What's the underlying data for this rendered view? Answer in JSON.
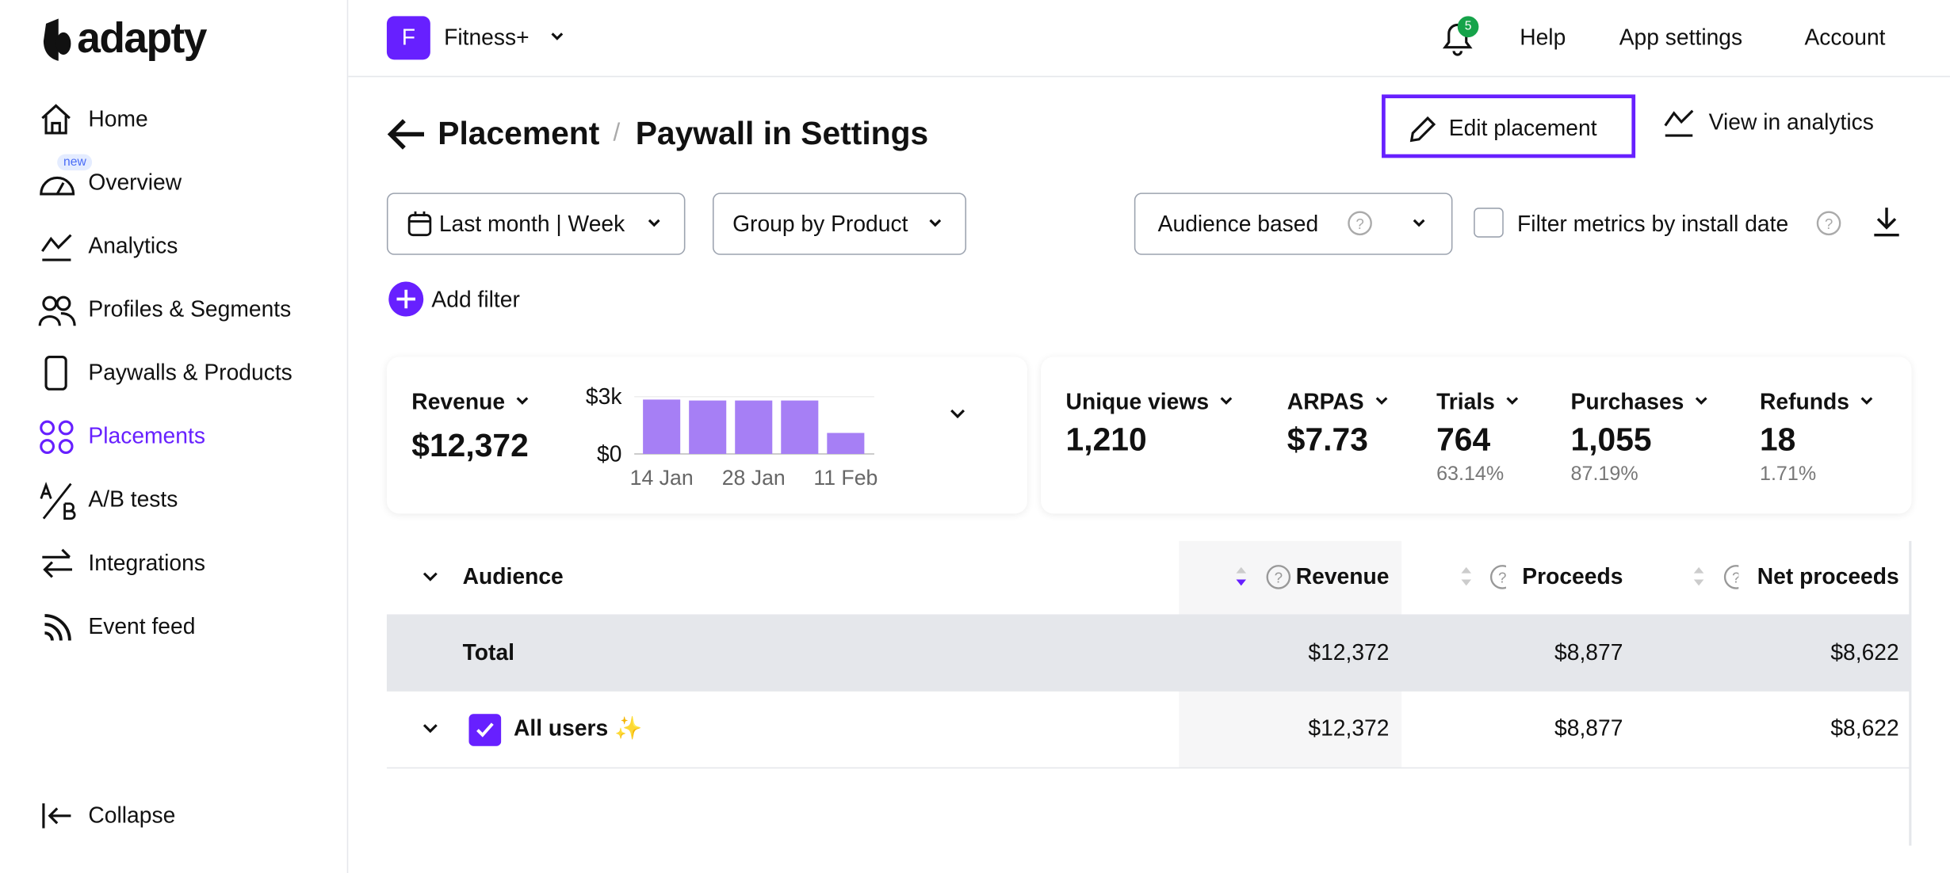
{
  "sidebar": {
    "logo": "adapty",
    "nav": [
      "Home",
      "Overview",
      "Analytics",
      "Profiles & Segments",
      "Paywalls & Products",
      "Placements",
      "A/B tests",
      "Integrations",
      "Event feed"
    ],
    "nav_badge": "new",
    "collapse": "Collapse"
  },
  "topbar": {
    "app_initial": "F",
    "app_name": "Fitness+",
    "notifications": "5",
    "links": [
      "Help",
      "App settings",
      "Account"
    ]
  },
  "page": {
    "breadcrumb": [
      "Placement",
      "Paywall in Settings"
    ],
    "actions": [
      "Edit placement",
      "View in analytics"
    ]
  },
  "filters": {
    "date": "Last month | Week",
    "group": "Group by Product",
    "audience": "Audience based",
    "install_filter": "Filter metrics by install date",
    "add_filter": "Add filter"
  },
  "revenue_card": {
    "label": "Revenue",
    "value": "$12,372",
    "chart_data": {
      "type": "bar",
      "categories": [
        "14 Jan",
        null,
        "28 Jan",
        null,
        "11 Feb"
      ],
      "values": [
        2850,
        2800,
        2800,
        2800,
        1100
      ],
      "color": "#a67ff5",
      "ylim": [
        0,
        3000
      ],
      "yticks": [
        {
          "value": 0,
          "label": "$0"
        },
        {
          "value": 3000,
          "label": "$3k"
        }
      ]
    }
  },
  "metrics": [
    {
      "label": "Unique views",
      "value": "1,210"
    },
    {
      "label": "ARPAS",
      "value": "$7.73"
    },
    {
      "label": "Trials",
      "value": "764",
      "sub": "63.14%"
    },
    {
      "label": "Purchases",
      "value": "1,055",
      "sub": "87.19%"
    },
    {
      "label": "Refunds",
      "value": "18",
      "sub": "1.71%"
    }
  ],
  "table": {
    "columns": [
      "Audience",
      "Revenue",
      "Proceeds",
      "Net proceeds"
    ],
    "rows": [
      [
        "Total",
        "$12,372",
        "$8,877",
        "$8,622"
      ],
      [
        "All users ✨",
        "$12,372",
        "$8,877",
        "$8,622"
      ]
    ]
  }
}
